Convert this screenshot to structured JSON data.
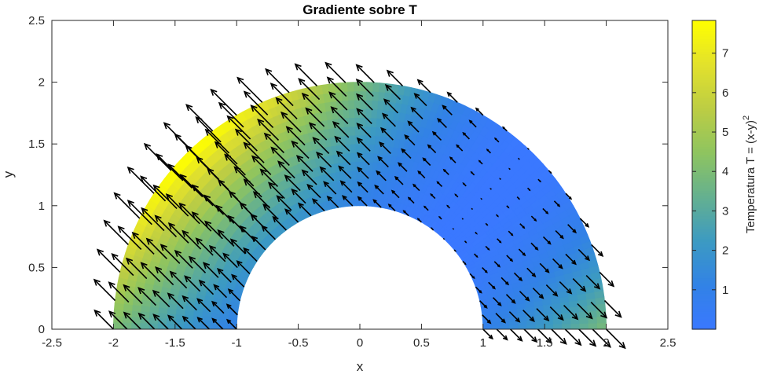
{
  "chart_data": {
    "type": "quiver-heatmap",
    "title": "Gradiente sobre T",
    "xlabel": "x",
    "ylabel": "y",
    "xlim": [
      -2.5,
      2.5
    ],
    "ylim": [
      0,
      2.5
    ],
    "xticks": [
      -2.5,
      -2,
      -1.5,
      -1,
      -0.5,
      0,
      0.5,
      1,
      1.5,
      2,
      2.5
    ],
    "xtick_labels": [
      "-2.5",
      "-2",
      "-1.5",
      "-1",
      "-0.5",
      "0",
      "0.5",
      "1",
      "1.5",
      "2",
      "2.5"
    ],
    "yticks": [
      0,
      0.5,
      1,
      1.5,
      2,
      2.5
    ],
    "ytick_labels": [
      "0",
      "0.5",
      "1",
      "1.5",
      "2",
      "2.5"
    ],
    "domain": {
      "shape": "half-annulus",
      "r_inner": 1,
      "r_outer": 2,
      "theta_range_deg": [
        0,
        180
      ]
    },
    "field": {
      "expression": "T = (x-y)^2",
      "gradient": [
        "2(x-y)",
        "-2(x-y)"
      ],
      "arrow_grid": {
        "n_radial": 10,
        "n_angular": 28
      }
    },
    "colorbar": {
      "label_main": "Temperatura  T  =  (x-y)",
      "label_sup": "2",
      "range": [
        0,
        7.83
      ],
      "ticks": [
        1,
        2,
        3,
        4,
        5,
        6,
        7
      ],
      "tick_labels": [
        "1",
        "2",
        "3",
        "4",
        "5",
        "6",
        "7"
      ]
    },
    "colormap": [
      "#3a78ff",
      "#3282e6",
      "#3c9ac2",
      "#64b090",
      "#8ec460",
      "#bccd44",
      "#e2e12c",
      "#ffff00"
    ],
    "arrow_color": "#000000",
    "grid": false
  }
}
